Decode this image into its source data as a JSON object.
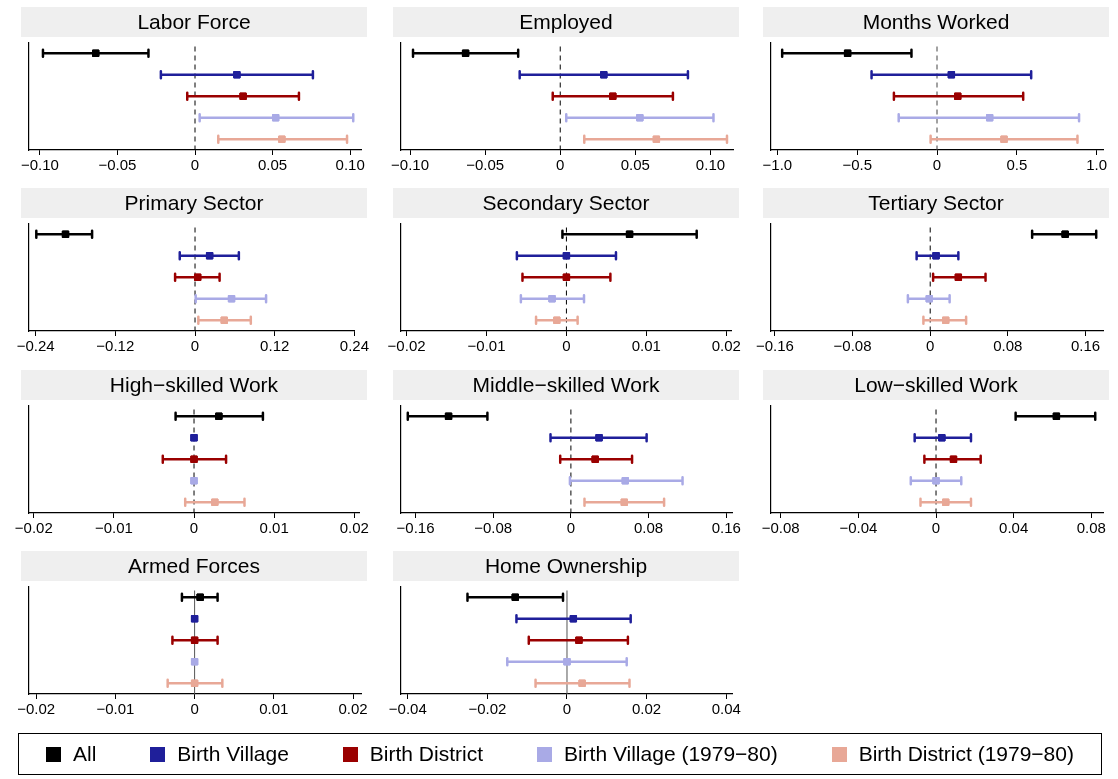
{
  "chart_data": [
    {
      "type": "scatter",
      "title": "Labor Force",
      "orientation": "horizontal",
      "categories": [
        null,
        null,
        null,
        null,
        null
      ],
      "xlim": [
        -0.107,
        0.107
      ],
      "xticks": [
        {
          "value": -0.1,
          "label": "−0.10"
        },
        {
          "value": -0.05,
          "label": "−0.05"
        },
        0,
        0.05,
        {
          "value": 0.1,
          "label": "0.10"
        }
      ],
      "tick_labels": "x",
      "marker": "square",
      "legend": "bottom",
      "ref_lines": [
        {
          "axis": "x",
          "value": 0,
          "line_style": "dashed",
          "color": "#000000"
        }
      ],
      "series": [
        {
          "name": "All",
          "color": "#000000",
          "values": [
            -0.064,
            null,
            null,
            null,
            null
          ],
          "errors": [
            [
              -0.098,
              -0.03
            ],
            null,
            null,
            null,
            null
          ]
        },
        {
          "name": "Birth Village",
          "color": "#1f1f9a",
          "values": [
            null,
            0.027,
            null,
            null,
            null
          ],
          "errors": [
            null,
            [
              -0.022,
              0.076
            ],
            null,
            null,
            null
          ]
        },
        {
          "name": "Birth District",
          "color": "#9a0000",
          "values": [
            null,
            null,
            0.031,
            null,
            null
          ],
          "errors": [
            null,
            null,
            [
              -0.005,
              0.067
            ],
            null,
            null
          ]
        },
        {
          "name": "Birth Village (1979−80)",
          "color": "#a9aae6",
          "values": [
            null,
            null,
            null,
            0.052,
            null
          ],
          "errors": [
            null,
            null,
            null,
            [
              0.003,
              0.102
            ],
            null
          ]
        },
        {
          "name": "Birth District (1979−80)",
          "color": "#e8a897",
          "values": [
            null,
            null,
            null,
            null,
            0.056
          ],
          "errors": [
            null,
            null,
            null,
            null,
            [
              0.015,
              0.098
            ]
          ]
        }
      ]
    },
    {
      "type": "scatter",
      "title": "Employed",
      "orientation": "horizontal",
      "categories": [
        null,
        null,
        null,
        null,
        null
      ],
      "xlim": [
        -0.106,
        0.115
      ],
      "xticks": [
        {
          "value": -0.1,
          "label": "−0.10"
        },
        {
          "value": -0.05,
          "label": "−0.05"
        },
        0,
        0.05,
        {
          "value": 0.1,
          "label": "0.10"
        }
      ],
      "tick_labels": "x",
      "marker": "square",
      "ref_lines": [
        {
          "axis": "x",
          "value": 0,
          "line_style": "dashed",
          "color": "#000000"
        }
      ],
      "series": [
        {
          "color": "#000000",
          "values": [
            -0.063,
            null,
            null,
            null,
            null
          ],
          "errors": [
            [
              -0.098,
              -0.028
            ],
            null,
            null,
            null,
            null
          ]
        },
        {
          "color": "#1f1f9a",
          "values": [
            null,
            0.029,
            null,
            null,
            null
          ],
          "errors": [
            null,
            [
              -0.027,
              0.085
            ],
            null,
            null,
            null
          ]
        },
        {
          "color": "#9a0000",
          "values": [
            null,
            null,
            0.035,
            null,
            null
          ],
          "errors": [
            null,
            null,
            [
              -0.005,
              0.075
            ],
            null,
            null
          ]
        },
        {
          "color": "#a9aae6",
          "values": [
            null,
            null,
            null,
            0.053,
            null
          ],
          "errors": [
            null,
            null,
            null,
            [
              0.004,
              0.102
            ],
            null
          ]
        },
        {
          "color": "#e8a897",
          "values": [
            null,
            null,
            null,
            null,
            0.064
          ],
          "errors": [
            null,
            null,
            null,
            null,
            [
              0.016,
              0.111
            ]
          ]
        }
      ]
    },
    {
      "type": "scatter",
      "title": "Months Worked",
      "orientation": "horizontal",
      "categories": [
        null,
        null,
        null,
        null,
        null
      ],
      "xlim": [
        -1.04,
        1.04
      ],
      "xticks": [
        {
          "value": -1,
          "label": "−1.0"
        },
        {
          "value": -0.5,
          "label": "−0.5"
        },
        0,
        0.5,
        {
          "value": 1,
          "label": "1.0"
        }
      ],
      "tick_labels": "x",
      "marker": "square",
      "ref_lines": [
        {
          "axis": "x",
          "value": 0,
          "line_style": "dashed",
          "color": "#444444"
        }
      ],
      "series": [
        {
          "color": "#000000",
          "values": [
            -0.56,
            null,
            null,
            null,
            null
          ],
          "errors": [
            [
              -0.97,
              -0.16
            ],
            null,
            null,
            null,
            null
          ]
        },
        {
          "color": "#1f1f9a",
          "values": [
            null,
            0.09,
            null,
            null,
            null
          ],
          "errors": [
            null,
            [
              -0.41,
              0.59
            ],
            null,
            null,
            null
          ]
        },
        {
          "color": "#9a0000",
          "values": [
            null,
            null,
            0.13,
            null,
            null
          ],
          "errors": [
            null,
            null,
            [
              -0.27,
              0.54
            ],
            null,
            null
          ]
        },
        {
          "color": "#a9aae6",
          "values": [
            null,
            null,
            null,
            0.33,
            null
          ],
          "errors": [
            null,
            null,
            null,
            [
              -0.24,
              0.89
            ],
            null
          ]
        },
        {
          "color": "#e8a897",
          "values": [
            null,
            null,
            null,
            null,
            0.42
          ],
          "errors": [
            null,
            null,
            null,
            null,
            [
              -0.04,
              0.88
            ]
          ]
        }
      ]
    },
    {
      "type": "scatter",
      "title": "Primary Sector",
      "orientation": "horizontal",
      "categories": [
        null,
        null,
        null,
        null,
        null
      ],
      "xlim": [
        -0.25,
        0.24
      ],
      "xticks": [
        {
          "value": -0.24,
          "label": "−0.24"
        },
        {
          "value": -0.12,
          "label": "−0.12"
        },
        0,
        0.12,
        0.24
      ],
      "tick_labels": "x",
      "marker": "square",
      "ref_lines": [
        {
          "axis": "x",
          "value": 0,
          "line_style": "dashed",
          "color": "#000000"
        }
      ],
      "series": [
        {
          "color": "#000000",
          "values": [
            -0.195,
            null,
            null,
            null,
            null
          ],
          "errors": [
            [
              -0.239,
              -0.155
            ],
            null,
            null,
            null,
            null
          ]
        },
        {
          "color": "#1f1f9a",
          "values": [
            null,
            0.022,
            null,
            null,
            null
          ],
          "errors": [
            null,
            [
              -0.023,
              0.066
            ],
            null,
            null,
            null
          ]
        },
        {
          "color": "#9a0000",
          "values": [
            null,
            null,
            0.004,
            null,
            null
          ],
          "errors": [
            null,
            null,
            [
              -0.03,
              0.037
            ],
            null,
            null
          ]
        },
        {
          "color": "#a9aae6",
          "values": [
            null,
            null,
            null,
            0.055,
            null
          ],
          "errors": [
            null,
            null,
            null,
            [
              0.001,
              0.107
            ],
            null
          ]
        },
        {
          "color": "#e8a897",
          "values": [
            null,
            null,
            null,
            null,
            0.044
          ],
          "errors": [
            null,
            null,
            null,
            null,
            [
              0.005,
              0.084
            ]
          ]
        }
      ]
    },
    {
      "type": "scatter",
      "title": "Secondary Sector",
      "orientation": "horizontal",
      "categories": [
        null,
        null,
        null,
        null,
        null
      ],
      "xlim": [
        -0.0207,
        0.0206
      ],
      "xticks": [
        {
          "value": -0.02,
          "label": "−0.02"
        },
        {
          "value": -0.01,
          "label": "−0.01"
        },
        0,
        0.01,
        0.02
      ],
      "tick_labels": "x",
      "marker": "square",
      "ref_lines": [
        {
          "axis": "x",
          "value": 0,
          "line_style": "dashed",
          "color": "#000000"
        }
      ],
      "series": [
        {
          "color": "#000000",
          "values": [
            0.0079,
            null,
            null,
            null,
            null
          ],
          "errors": [
            [
              -0.0005,
              0.0163
            ],
            null,
            null,
            null,
            null
          ]
        },
        {
          "color": "#1f1f9a",
          "values": [
            null,
            0,
            null,
            null,
            null
          ],
          "errors": [
            null,
            [
              -0.0062,
              0.0062
            ],
            null,
            null,
            null
          ]
        },
        {
          "color": "#9a0000",
          "values": [
            null,
            null,
            0,
            null,
            null
          ],
          "errors": [
            null,
            null,
            [
              -0.0055,
              0.0055
            ],
            null,
            null
          ]
        },
        {
          "color": "#a9aae6",
          "values": [
            null,
            null,
            null,
            -0.0018,
            null
          ],
          "errors": [
            null,
            null,
            null,
            [
              -0.0057,
              0.0022
            ],
            null
          ]
        },
        {
          "color": "#e8a897",
          "values": [
            null,
            null,
            null,
            null,
            -0.0012
          ],
          "errors": [
            null,
            null,
            null,
            null,
            [
              -0.0038,
              0.0014
            ]
          ]
        }
      ]
    },
    {
      "type": "scatter",
      "title": "Tertiary Sector",
      "orientation": "horizontal",
      "categories": [
        null,
        null,
        null,
        null,
        null
      ],
      "xlim": [
        -0.164,
        0.178
      ],
      "xticks": [
        {
          "value": -0.16,
          "label": "−0.16"
        },
        {
          "value": -0.08,
          "label": "−0.08"
        },
        0,
        0.08,
        0.16
      ],
      "tick_labels": "x",
      "marker": "square",
      "ref_lines": [
        {
          "axis": "x",
          "value": 0,
          "line_style": "dashed",
          "color": "#000000"
        }
      ],
      "series": [
        {
          "color": "#000000",
          "values": [
            0.139,
            null,
            null,
            null,
            null
          ],
          "errors": [
            [
              0.105,
              0.171
            ],
            null,
            null,
            null,
            null
          ]
        },
        {
          "color": "#1f1f9a",
          "values": [
            null,
            0.006,
            null,
            null,
            null
          ],
          "errors": [
            null,
            [
              -0.014,
              0.029
            ],
            null,
            null,
            null
          ]
        },
        {
          "color": "#9a0000",
          "values": [
            null,
            null,
            0.029,
            null,
            null
          ],
          "errors": [
            null,
            null,
            [
              0.003,
              0.057
            ],
            null,
            null
          ]
        },
        {
          "color": "#a9aae6",
          "values": [
            null,
            null,
            null,
            -0.001,
            null
          ],
          "errors": [
            null,
            null,
            null,
            [
              -0.023,
              0.02
            ],
            null
          ]
        },
        {
          "color": "#e8a897",
          "values": [
            null,
            null,
            null,
            null,
            0.016
          ],
          "errors": [
            null,
            null,
            null,
            null,
            [
              -0.007,
              0.037
            ]
          ]
        }
      ]
    },
    {
      "type": "scatter",
      "title": "High−skilled Work",
      "orientation": "horizontal",
      "categories": [
        null,
        null,
        null,
        null,
        null
      ],
      "xlim": [
        -0.0206,
        0.0207
      ],
      "xticks": [
        {
          "value": -0.02,
          "label": "−0.02"
        },
        {
          "value": -0.01,
          "label": "−0.01"
        },
        0,
        0.01,
        0.02
      ],
      "tick_labels": "x",
      "marker": "square",
      "ref_lines": [
        {
          "axis": "x",
          "value": 0,
          "line_style": "dashed",
          "color": "#000000"
        }
      ],
      "series": [
        {
          "color": "#000000",
          "values": [
            0.0031,
            null,
            null,
            null,
            null
          ],
          "errors": [
            [
              -0.0023,
              0.0086
            ],
            null,
            null,
            null,
            null
          ]
        },
        {
          "color": "#1f1f9a",
          "values": [
            null,
            0,
            null,
            null,
            null
          ],
          "errors": [
            null,
            null,
            null,
            null,
            null
          ]
        },
        {
          "color": "#9a0000",
          "values": [
            null,
            null,
            0,
            null,
            null
          ],
          "errors": [
            null,
            null,
            [
              -0.0039,
              0.004
            ],
            null,
            null
          ]
        },
        {
          "color": "#a9aae6",
          "values": [
            null,
            null,
            null,
            0,
            null
          ],
          "errors": [
            null,
            null,
            null,
            null,
            null
          ]
        },
        {
          "color": "#e8a897",
          "values": [
            null,
            null,
            null,
            null,
            0.0026
          ],
          "errors": [
            null,
            null,
            null,
            null,
            [
              -0.0011,
              0.0063
            ]
          ]
        }
      ]
    },
    {
      "type": "scatter",
      "title": "Middle−skilled Work",
      "orientation": "horizontal",
      "categories": [
        null,
        null,
        null,
        null,
        null
      ],
      "xlim": [
        -0.175,
        0.166
      ],
      "xticks": [
        {
          "value": -0.16,
          "label": "−0.16"
        },
        {
          "value": -0.08,
          "label": "−0.08"
        },
        0,
        0.08,
        0.16
      ],
      "tick_labels": "x",
      "marker": "square",
      "ref_lines": [
        {
          "axis": "x",
          "value": 0,
          "line_style": "dashed",
          "color": "#000000"
        }
      ],
      "series": [
        {
          "color": "#000000",
          "values": [
            -0.126,
            null,
            null,
            null,
            null
          ],
          "errors": [
            [
              -0.168,
              -0.086
            ],
            null,
            null,
            null,
            null
          ]
        },
        {
          "color": "#1f1f9a",
          "values": [
            null,
            0.029,
            null,
            null,
            null
          ],
          "errors": [
            null,
            [
              -0.021,
              0.078
            ],
            null,
            null,
            null
          ]
        },
        {
          "color": "#9a0000",
          "values": [
            null,
            null,
            0.025,
            null,
            null
          ],
          "errors": [
            null,
            null,
            [
              -0.011,
              0.063
            ],
            null,
            null
          ]
        },
        {
          "color": "#a9aae6",
          "values": [
            null,
            null,
            null,
            0.056,
            null
          ],
          "errors": [
            null,
            null,
            null,
            [
              -0.001,
              0.115
            ],
            null
          ]
        },
        {
          "color": "#e8a897",
          "values": [
            null,
            null,
            null,
            null,
            0.055
          ],
          "errors": [
            null,
            null,
            null,
            null,
            [
              0.014,
              0.096
            ]
          ]
        }
      ]
    },
    {
      "type": "scatter",
      "title": "Low−skilled Work",
      "orientation": "horizontal",
      "categories": [
        null,
        null,
        null,
        null,
        null
      ],
      "xlim": [
        -0.085,
        0.086
      ],
      "xticks": [
        {
          "value": -0.08,
          "label": "−0.08"
        },
        {
          "value": -0.04,
          "label": "−0.04"
        },
        0,
        0.04,
        0.08
      ],
      "tick_labels": "x",
      "marker": "square",
      "ref_lines": [
        {
          "axis": "x",
          "value": 0,
          "line_style": "dashed",
          "color": "#000000"
        }
      ],
      "series": [
        {
          "color": "#000000",
          "values": [
            0.062,
            null,
            null,
            null,
            null
          ],
          "errors": [
            [
              0.041,
              0.082
            ],
            null,
            null,
            null,
            null
          ]
        },
        {
          "color": "#1f1f9a",
          "values": [
            null,
            0.003,
            null,
            null,
            null
          ],
          "errors": [
            null,
            [
              -0.011,
              0.018
            ],
            null,
            null,
            null
          ]
        },
        {
          "color": "#9a0000",
          "values": [
            null,
            null,
            0.009,
            null,
            null
          ],
          "errors": [
            null,
            null,
            [
              -0.006,
              0.023
            ],
            null,
            null
          ]
        },
        {
          "color": "#a9aae6",
          "values": [
            null,
            null,
            null,
            0,
            null
          ],
          "errors": [
            null,
            null,
            null,
            [
              -0.013,
              0.013
            ],
            null
          ]
        },
        {
          "color": "#e8a897",
          "values": [
            null,
            null,
            null,
            null,
            0.005
          ],
          "errors": [
            null,
            null,
            null,
            null,
            [
              -0.008,
              0.018
            ]
          ]
        }
      ]
    },
    {
      "type": "scatter",
      "title": "Armed Forces",
      "orientation": "horizontal",
      "categories": [
        null,
        null,
        null,
        null,
        null
      ],
      "xlim": [
        -0.0209,
        0.021
      ],
      "xticks": [
        {
          "value": -0.02,
          "label": "−0.02"
        },
        {
          "value": -0.01,
          "label": "−0.01"
        },
        0,
        0.01,
        0.02
      ],
      "tick_labels": "x",
      "marker": "square",
      "ref_lines": [
        {
          "axis": "x",
          "value": 0,
          "line_style": "solid",
          "color": "#555555"
        }
      ],
      "series": [
        {
          "color": "#000000",
          "values": [
            0.0007,
            null,
            null,
            null,
            null
          ],
          "errors": [
            [
              -0.0016,
              0.0029
            ],
            null,
            null,
            null,
            null
          ]
        },
        {
          "color": "#1f1f9a",
          "values": [
            null,
            0,
            null,
            null,
            null
          ],
          "errors": [
            null,
            null,
            null,
            null,
            null
          ]
        },
        {
          "color": "#9a0000",
          "values": [
            null,
            null,
            0,
            null,
            null
          ],
          "errors": [
            null,
            null,
            [
              -0.0028,
              0.0029
            ],
            null,
            null
          ]
        },
        {
          "color": "#a9aae6",
          "values": [
            null,
            null,
            null,
            0,
            null
          ],
          "errors": [
            null,
            null,
            null,
            null,
            null
          ]
        },
        {
          "color": "#e8a897",
          "values": [
            null,
            null,
            null,
            null,
            0
          ],
          "errors": [
            null,
            null,
            null,
            null,
            [
              -0.0034,
              0.0035
            ]
          ]
        }
      ]
    },
    {
      "type": "scatter",
      "title": "Home Ownership",
      "orientation": "horizontal",
      "categories": [
        null,
        null,
        null,
        null,
        null
      ],
      "xlim": [
        -0.0417,
        0.0415
      ],
      "xticks": [
        {
          "value": -0.04,
          "label": "−0.04"
        },
        {
          "value": -0.02,
          "label": "−0.02"
        },
        0,
        0.02,
        0.04
      ],
      "tick_labels": "x",
      "marker": "square",
      "ref_lines": [
        {
          "axis": "x",
          "value": 0,
          "line_style": "solid",
          "color": "#555555"
        }
      ],
      "series": [
        {
          "color": "#000000",
          "values": [
            -0.013,
            null,
            null,
            null,
            null
          ],
          "errors": [
            [
              -0.025,
              -0.001
            ],
            null,
            null,
            null,
            null
          ]
        },
        {
          "color": "#1f1f9a",
          "values": [
            null,
            0.0016,
            null,
            null,
            null
          ],
          "errors": [
            null,
            [
              -0.0127,
              0.016
            ],
            null,
            null,
            null
          ]
        },
        {
          "color": "#9a0000",
          "values": [
            null,
            null,
            0.003,
            null,
            null
          ],
          "errors": [
            null,
            null,
            [
              -0.0096,
              0.0153
            ],
            null,
            null
          ]
        },
        {
          "color": "#a9aae6",
          "values": [
            null,
            null,
            null,
            0,
            null
          ],
          "errors": [
            null,
            null,
            null,
            [
              -0.015,
              0.015
            ],
            null
          ]
        },
        {
          "color": "#e8a897",
          "values": [
            null,
            null,
            null,
            null,
            0.0038
          ],
          "errors": [
            null,
            null,
            null,
            null,
            [
              -0.0079,
              0.0157
            ]
          ]
        }
      ]
    }
  ]
}
